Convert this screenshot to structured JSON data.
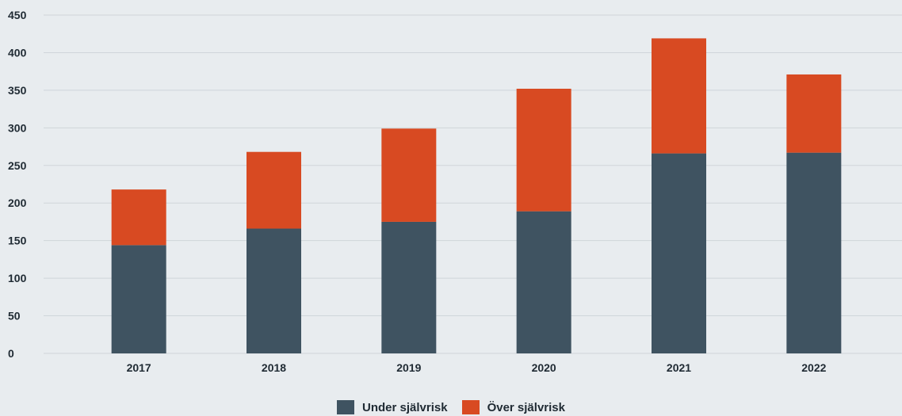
{
  "chart_data": {
    "type": "bar",
    "stacked": true,
    "categories": [
      "2017",
      "2018",
      "2019",
      "2020",
      "2021",
      "2022"
    ],
    "series": [
      {
        "name": "Under självrisk",
        "color": "#3f5361",
        "values": [
          144,
          166,
          175,
          189,
          266,
          267
        ]
      },
      {
        "name": "Över självrisk",
        "color": "#d84a22",
        "values": [
          74,
          102,
          124,
          163,
          153,
          104
        ]
      }
    ],
    "ylim": [
      0,
      450
    ],
    "yticks": [
      "0",
      "50",
      "100",
      "150",
      "200",
      "250",
      "300",
      "350",
      "400",
      "450"
    ],
    "grid": true,
    "legend_position": "bottom-center",
    "title": "",
    "xlabel": "",
    "ylabel": ""
  }
}
